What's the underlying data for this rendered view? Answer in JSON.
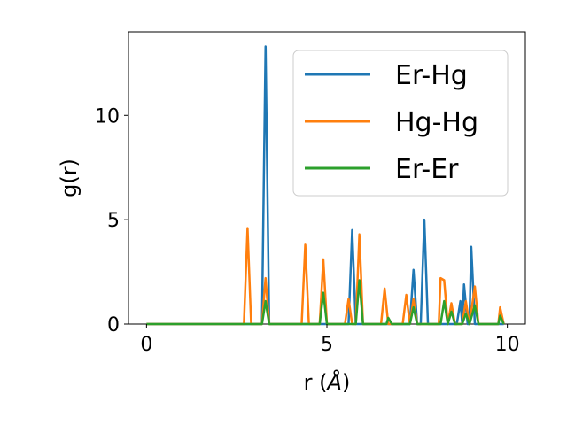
{
  "chart_data": {
    "type": "line",
    "title": "",
    "xlabel": "r (",
    "xlabel_unit": "Å",
    "xlabel_close": ")",
    "ylabel": "g(r)",
    "xlim": [
      -0.5,
      10.5
    ],
    "ylim": [
      0,
      14
    ],
    "xticks": [
      0,
      5,
      10
    ],
    "yticks": [
      0,
      5,
      10
    ],
    "grid": false,
    "legend_position": "top-right",
    "series": [
      {
        "name": "Er-Hg",
        "color": "#1f77b4",
        "points": [
          [
            0,
            0
          ],
          [
            3.2,
            0
          ],
          [
            3.3,
            13.3
          ],
          [
            3.4,
            0
          ],
          [
            5.6,
            0
          ],
          [
            5.7,
            4.5
          ],
          [
            5.8,
            0
          ],
          [
            7.3,
            0
          ],
          [
            7.4,
            2.6
          ],
          [
            7.5,
            0
          ],
          [
            7.6,
            0
          ],
          [
            7.7,
            5.0
          ],
          [
            7.8,
            0
          ],
          [
            8.6,
            0
          ],
          [
            8.7,
            1.1
          ],
          [
            8.75,
            0
          ],
          [
            8.8,
            1.9
          ],
          [
            8.9,
            0
          ],
          [
            8.95,
            0
          ],
          [
            9.0,
            3.7
          ],
          [
            9.1,
            0
          ],
          [
            9.9,
            0
          ]
        ]
      },
      {
        "name": "Hg-Hg",
        "color": "#ff7f0e",
        "points": [
          [
            0,
            0
          ],
          [
            2.7,
            0
          ],
          [
            2.8,
            4.6
          ],
          [
            2.9,
            0
          ],
          [
            3.2,
            0
          ],
          [
            3.3,
            2.2
          ],
          [
            3.4,
            0
          ],
          [
            4.3,
            0
          ],
          [
            4.4,
            3.8
          ],
          [
            4.5,
            0
          ],
          [
            4.8,
            0
          ],
          [
            4.9,
            3.1
          ],
          [
            5.0,
            0
          ],
          [
            5.5,
            0
          ],
          [
            5.6,
            1.2
          ],
          [
            5.7,
            0
          ],
          [
            5.8,
            0
          ],
          [
            5.9,
            4.3
          ],
          [
            6.0,
            0
          ],
          [
            6.5,
            0
          ],
          [
            6.6,
            1.7
          ],
          [
            6.7,
            0
          ],
          [
            7.1,
            0
          ],
          [
            7.2,
            1.4
          ],
          [
            7.3,
            0
          ],
          [
            7.4,
            1.2
          ],
          [
            7.5,
            0
          ],
          [
            8.1,
            0
          ],
          [
            8.15,
            2.2
          ],
          [
            8.25,
            2.1
          ],
          [
            8.35,
            0
          ],
          [
            8.45,
            1.0
          ],
          [
            8.55,
            0
          ],
          [
            8.75,
            0
          ],
          [
            8.85,
            1.1
          ],
          [
            8.95,
            0
          ],
          [
            9.1,
            1.8
          ],
          [
            9.2,
            0
          ],
          [
            9.75,
            0
          ],
          [
            9.8,
            0.8
          ],
          [
            9.9,
            0
          ]
        ]
      },
      {
        "name": "Er-Er",
        "color": "#2ca02c",
        "points": [
          [
            0,
            0
          ],
          [
            3.2,
            0
          ],
          [
            3.3,
            1.1
          ],
          [
            3.4,
            0
          ],
          [
            4.8,
            0
          ],
          [
            4.9,
            1.5
          ],
          [
            5.0,
            0
          ],
          [
            5.8,
            0
          ],
          [
            5.9,
            2.1
          ],
          [
            6.0,
            0
          ],
          [
            6.65,
            0
          ],
          [
            6.7,
            0.3
          ],
          [
            6.8,
            0
          ],
          [
            7.3,
            0
          ],
          [
            7.4,
            0.8
          ],
          [
            7.5,
            0
          ],
          [
            8.15,
            0
          ],
          [
            8.25,
            1.1
          ],
          [
            8.35,
            0
          ],
          [
            8.45,
            0.6
          ],
          [
            8.55,
            0
          ],
          [
            8.75,
            0
          ],
          [
            8.85,
            0.5
          ],
          [
            8.95,
            0
          ],
          [
            9.1,
            0.9
          ],
          [
            9.2,
            0
          ],
          [
            9.75,
            0
          ],
          [
            9.8,
            0.4
          ],
          [
            9.9,
            0
          ]
        ]
      }
    ]
  }
}
